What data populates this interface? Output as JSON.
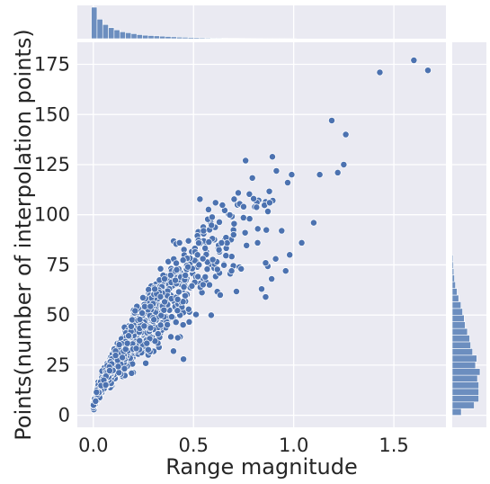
{
  "chart_data": {
    "type": "scatter",
    "title": "",
    "xlabel": "Range magnitude",
    "ylabel": "Points(number of interpolation points)",
    "xlim": [
      -0.08,
      1.76
    ],
    "ylim": [
      -6,
      186
    ],
    "x_ticks": [
      0.0,
      0.5,
      1.0,
      1.5
    ],
    "x_tick_labels": [
      "0.0",
      "0.5",
      "1.0",
      "1.5"
    ],
    "y_ticks": [
      0,
      25,
      50,
      75,
      100,
      125,
      150,
      175
    ],
    "y_tick_labels": [
      "0",
      "25",
      "50",
      "75",
      "100",
      "125",
      "150",
      "175"
    ],
    "grid": true,
    "colors": {
      "background": "#eaeaf2",
      "marker": "#4c72b0",
      "bar": "#6c8ebf",
      "grid": "#ffffff"
    },
    "outlier_points": [
      {
        "x": 1.6,
        "y": 177
      },
      {
        "x": 1.67,
        "y": 172
      },
      {
        "x": 1.43,
        "y": 171
      },
      {
        "x": 1.19,
        "y": 147
      },
      {
        "x": 1.26,
        "y": 140
      },
      {
        "x": 0.76,
        "y": 127
      },
      {
        "x": 1.25,
        "y": 125
      },
      {
        "x": 1.22,
        "y": 121
      },
      {
        "x": 1.13,
        "y": 120
      },
      {
        "x": 0.99,
        "y": 120
      },
      {
        "x": 0.97,
        "y": 116
      },
      {
        "x": 0.8,
        "y": 108
      },
      {
        "x": 0.61,
        "y": 106
      },
      {
        "x": 0.88,
        "y": 106
      },
      {
        "x": 0.75,
        "y": 104
      },
      {
        "x": 1.1,
        "y": 96
      },
      {
        "x": 0.94,
        "y": 92
      },
      {
        "x": 1.04,
        "y": 86
      },
      {
        "x": 0.98,
        "y": 80
      },
      {
        "x": 0.86,
        "y": 76
      },
      {
        "x": 0.96,
        "y": 72
      },
      {
        "x": 0.89,
        "y": 68
      },
      {
        "x": 0.69,
        "y": 72
      },
      {
        "x": 0.84,
        "y": 63
      },
      {
        "x": 0.43,
        "y": 86
      },
      {
        "x": 0.52,
        "y": 80
      },
      {
        "x": 0.7,
        "y": 90
      },
      {
        "x": 0.64,
        "y": 86
      },
      {
        "x": 0.82,
        "y": 86
      },
      {
        "x": 0.86,
        "y": 59
      },
      {
        "x": 0.45,
        "y": 28
      },
      {
        "x": 0.4,
        "y": 32
      },
      {
        "x": 0.78,
        "y": 98
      },
      {
        "x": 0.91,
        "y": 78
      },
      {
        "x": 0.55,
        "y": 92
      }
    ],
    "cluster_model": {
      "n_points": 1200,
      "x_distribution": "exponential",
      "x_scale": 0.22,
      "x_max": 0.98,
      "y_curve": "y = 5 + 115 * x^0.78",
      "relative_spread": 0.15
    },
    "marginal_x_histogram": {
      "bin_width": 0.0284,
      "bin_start": -0.01,
      "relative_counts": [
        1.0,
        0.62,
        0.45,
        0.35,
        0.28,
        0.22,
        0.19,
        0.16,
        0.13,
        0.11,
        0.1,
        0.09,
        0.08,
        0.07,
        0.06,
        0.05,
        0.045,
        0.04,
        0.035,
        0.03,
        0.025,
        0.02,
        0.02,
        0.015,
        0.01,
        0.01,
        0.008,
        0.006,
        0.005,
        0.004,
        0.003,
        0.003,
        0.002,
        0.002,
        0.002,
        0.001
      ]
    },
    "marginal_y_histogram": {
      "bin_width": 3.33,
      "bin_start": 0,
      "relative_counts": [
        0.28,
        0.68,
        0.82,
        0.82,
        0.82,
        0.78,
        0.86,
        0.72,
        0.76,
        0.63,
        0.57,
        0.54,
        0.47,
        0.4,
        0.37,
        0.32,
        0.27,
        0.2,
        0.15,
        0.1,
        0.07,
        0.05,
        0.04,
        0.03
      ]
    }
  }
}
